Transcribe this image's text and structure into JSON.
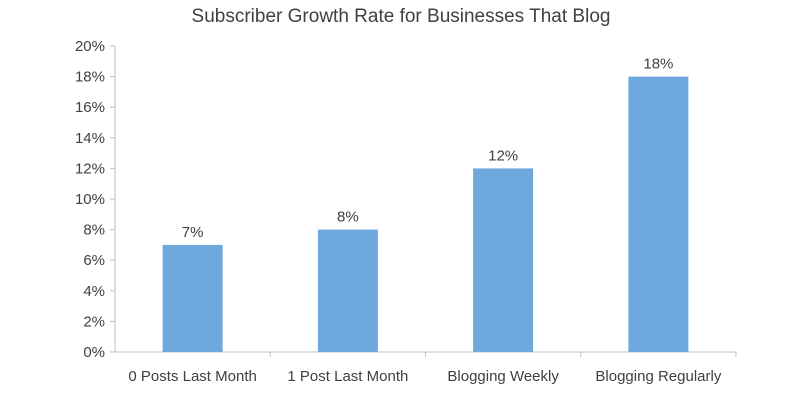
{
  "chart_data": {
    "type": "bar",
    "title": "Subscriber Growth Rate for Businesses That Blog",
    "categories": [
      "0 Posts Last Month",
      "1 Post Last Month",
      "Blogging Weekly",
      "Blogging Regularly"
    ],
    "values": [
      7,
      8,
      12,
      18
    ],
    "data_labels": [
      "7%",
      "8%",
      "12%",
      "18%"
    ],
    "y_ticks": [
      "0%",
      "2%",
      "4%",
      "6%",
      "8%",
      "10%",
      "12%",
      "14%",
      "16%",
      "18%",
      "20%"
    ],
    "ylim": [
      0,
      20
    ],
    "y_tick_step": 2,
    "xlabel": "",
    "ylabel": "",
    "grid": false,
    "legend": "none",
    "bar_color": "#6FA8DC",
    "axis_color": "#BFBFBF",
    "text_color": "#404040"
  }
}
